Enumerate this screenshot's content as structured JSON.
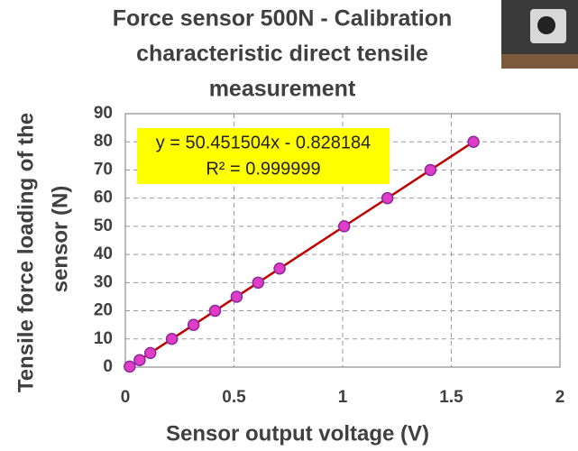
{
  "chart_data": {
    "type": "scatter",
    "title": [
      "Force sensor 500N - Calibration",
      "characteristic direct tensile",
      "measurement"
    ],
    "xlabel": "Sensor output voltage (V)",
    "ylabel": [
      "Tensile force loading of the",
      "sensor (N)"
    ],
    "series": [
      {
        "x": [
          0.02,
          0.066,
          0.115,
          0.214,
          0.314,
          0.413,
          0.512,
          0.611,
          0.71,
          1.007,
          1.206,
          1.404,
          1.602
        ],
        "values": [
          0.2,
          2.5,
          5,
          10,
          15,
          20,
          25,
          30,
          35,
          50,
          60,
          70,
          80
        ],
        "color": "#e03cc8",
        "line_color": "#c00000"
      }
    ],
    "trendline_labels": [
      "y = 50.451504x - 0.828184",
      "R² = 0.999999"
    ],
    "xlim": [
      0,
      2
    ],
    "xticks": [
      0,
      0.5,
      1,
      1.5,
      2
    ],
    "ylim": [
      0,
      90
    ],
    "yticks": [
      0,
      10,
      20,
      30,
      40,
      50,
      60,
      70,
      80,
      90
    ],
    "grid": true
  }
}
